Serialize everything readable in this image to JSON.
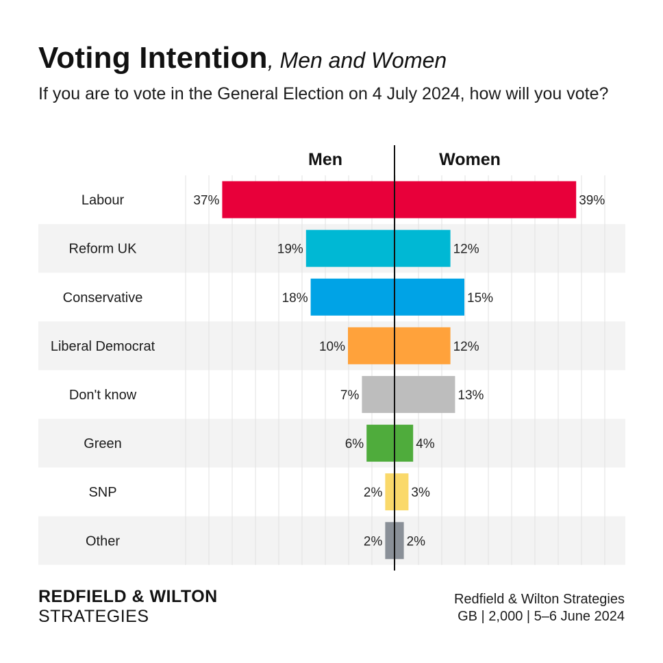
{
  "title": {
    "main": "Voting Intention",
    "sub": ", Men and Women"
  },
  "question": "If you are to vote in the General Election on 4 July 2024, how will you vote?",
  "footer": {
    "brand_line1": "REDFIELD & WILTON",
    "brand_line2": "STRATEGIES",
    "source_line1": "Redfield & Wilton Strategies",
    "source_line2": "GB | 2,000 | 5–6 June 2024"
  },
  "chart_data": {
    "type": "bar",
    "orientation": "horizontal-diverging",
    "series_names": [
      "Men",
      "Women"
    ],
    "categories": [
      "Labour",
      "Reform UK",
      "Conservative",
      "Liberal Democrat",
      "Don't know",
      "Green",
      "SNP",
      "Other"
    ],
    "series": [
      {
        "name": "Men",
        "values": [
          37,
          19,
          18,
          10,
          7,
          6,
          2,
          2
        ]
      },
      {
        "name": "Women",
        "values": [
          39,
          12,
          15,
          12,
          13,
          4,
          3,
          2
        ]
      }
    ],
    "value_labels": {
      "Men": [
        "37%",
        "19%",
        "18%",
        "10%",
        "7%",
        "6%",
        "2%",
        "2%"
      ],
      "Women": [
        "39%",
        "12%",
        "15%",
        "12%",
        "13%",
        "4%",
        "3%",
        "2%"
      ]
    },
    "colors": [
      "#e8003a",
      "#00b8d4",
      "#00a3e6",
      "#ffa23b",
      "#bdbdbd",
      "#4fac3c",
      "#fad96a",
      "#8a9098"
    ],
    "label_color": "#222222",
    "stripe_color": "#f3f3f3",
    "grid_color": "#e2e2e2",
    "grid": true,
    "legend": "column headers above bars"
  }
}
